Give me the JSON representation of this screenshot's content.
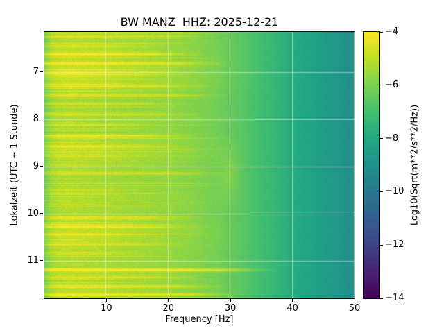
{
  "chart_data": {
    "type": "heatmap",
    "title": "BW MANZ  HHZ: 2025-12-21",
    "xlabel": "Frequency [Hz]",
    "ylabel": "Lokalzeit (UTC + 1 Stunde)",
    "x_range": [
      0,
      50
    ],
    "x_ticks": [
      {
        "value": 10,
        "label": "10"
      },
      {
        "value": 20,
        "label": "20"
      },
      {
        "value": 30,
        "label": "30"
      },
      {
        "value": 40,
        "label": "40"
      },
      {
        "value": 50,
        "label": "50"
      }
    ],
    "y_range": [
      6.15,
      11.8
    ],
    "y_ticks": [
      {
        "value": 7,
        "label": "7"
      },
      {
        "value": 8,
        "label": "8"
      },
      {
        "value": 9,
        "label": "9"
      },
      {
        "value": 10,
        "label": "10"
      },
      {
        "value": 11,
        "label": "11"
      }
    ],
    "grid": true,
    "colormap": "viridis",
    "value_range": [
      -14,
      -4
    ],
    "colorbar": {
      "label": "Log10(Sqrt(m**2/s**2/Hz))",
      "ticks": [
        {
          "value": -4,
          "label": "−4"
        },
        {
          "value": -6,
          "label": "−6"
        },
        {
          "value": -8,
          "label": "−8"
        },
        {
          "value": -10,
          "label": "−10"
        },
        {
          "value": -12,
          "label": "−12"
        },
        {
          "value": -14,
          "label": "−14"
        }
      ],
      "stops": [
        "#440154",
        "#482475",
        "#414487",
        "#355f8d",
        "#2a788e",
        "#21918c",
        "#22a884",
        "#44bf70",
        "#7ad151",
        "#bddf26",
        "#fde725"
      ]
    },
    "baseline_spectrum": {
      "freq_hz": [
        0,
        1,
        2,
        4,
        8,
        12,
        16,
        20,
        24,
        28,
        32,
        36,
        40,
        44,
        47,
        50
      ],
      "level_log10": [
        -6.3,
        -5.6,
        -5.3,
        -5.2,
        -5.3,
        -5.4,
        -5.5,
        -5.6,
        -5.8,
        -6.1,
        -6.6,
        -7.2,
        -7.8,
        -8.3,
        -8.7,
        -9.1
      ]
    },
    "transient_events": [
      {
        "hour": 6.25,
        "boost": 0.9,
        "fmax": 28
      },
      {
        "hour": 6.45,
        "boost": 0.6,
        "fmax": 20
      },
      {
        "hour": 6.62,
        "boost": 0.8,
        "fmax": 26
      },
      {
        "hour": 6.82,
        "boost": 1.0,
        "fmax": 30
      },
      {
        "hour": 7.05,
        "boost": 0.7,
        "fmax": 24
      },
      {
        "hour": 7.3,
        "boost": 0.8,
        "fmax": 28
      },
      {
        "hour": 7.5,
        "boost": 1.0,
        "fmax": 30
      },
      {
        "hour": 7.68,
        "boost": 0.7,
        "fmax": 24
      },
      {
        "hour": 7.9,
        "boost": 0.8,
        "fmax": 26
      },
      {
        "hour": 8.12,
        "boost": 0.6,
        "fmax": 20
      },
      {
        "hour": 8.35,
        "boost": 0.8,
        "fmax": 26
      },
      {
        "hour": 8.58,
        "boost": 0.7,
        "fmax": 24
      },
      {
        "hour": 8.78,
        "boost": 0.5,
        "fmax": 18
      },
      {
        "hour": 9.15,
        "boost": 0.8,
        "fmax": 30
      },
      {
        "hour": 9.5,
        "boost": 0.5,
        "fmax": 18
      },
      {
        "hour": 10.1,
        "boost": 0.8,
        "fmax": 26
      },
      {
        "hour": 10.28,
        "boost": 0.8,
        "fmax": 26
      },
      {
        "hour": 10.45,
        "boost": 0.6,
        "fmax": 20
      },
      {
        "hour": 10.65,
        "boost": 0.8,
        "fmax": 24
      },
      {
        "hour": 10.85,
        "boost": 0.5,
        "fmax": 18
      },
      {
        "hour": 11.2,
        "boost": 1.6,
        "fmax": 38
      },
      {
        "hour": 11.35,
        "boost": 0.8,
        "fmax": 26
      },
      {
        "hour": 11.55,
        "boost": 1.0,
        "fmax": 30
      },
      {
        "hour": 11.72,
        "boost": 1.2,
        "fmax": 32
      }
    ],
    "vertical_features": [
      {
        "freq": 30,
        "hour": 9.2,
        "boost": 0.5,
        "f_width": 1.5,
        "h_width": 0.5
      }
    ]
  }
}
